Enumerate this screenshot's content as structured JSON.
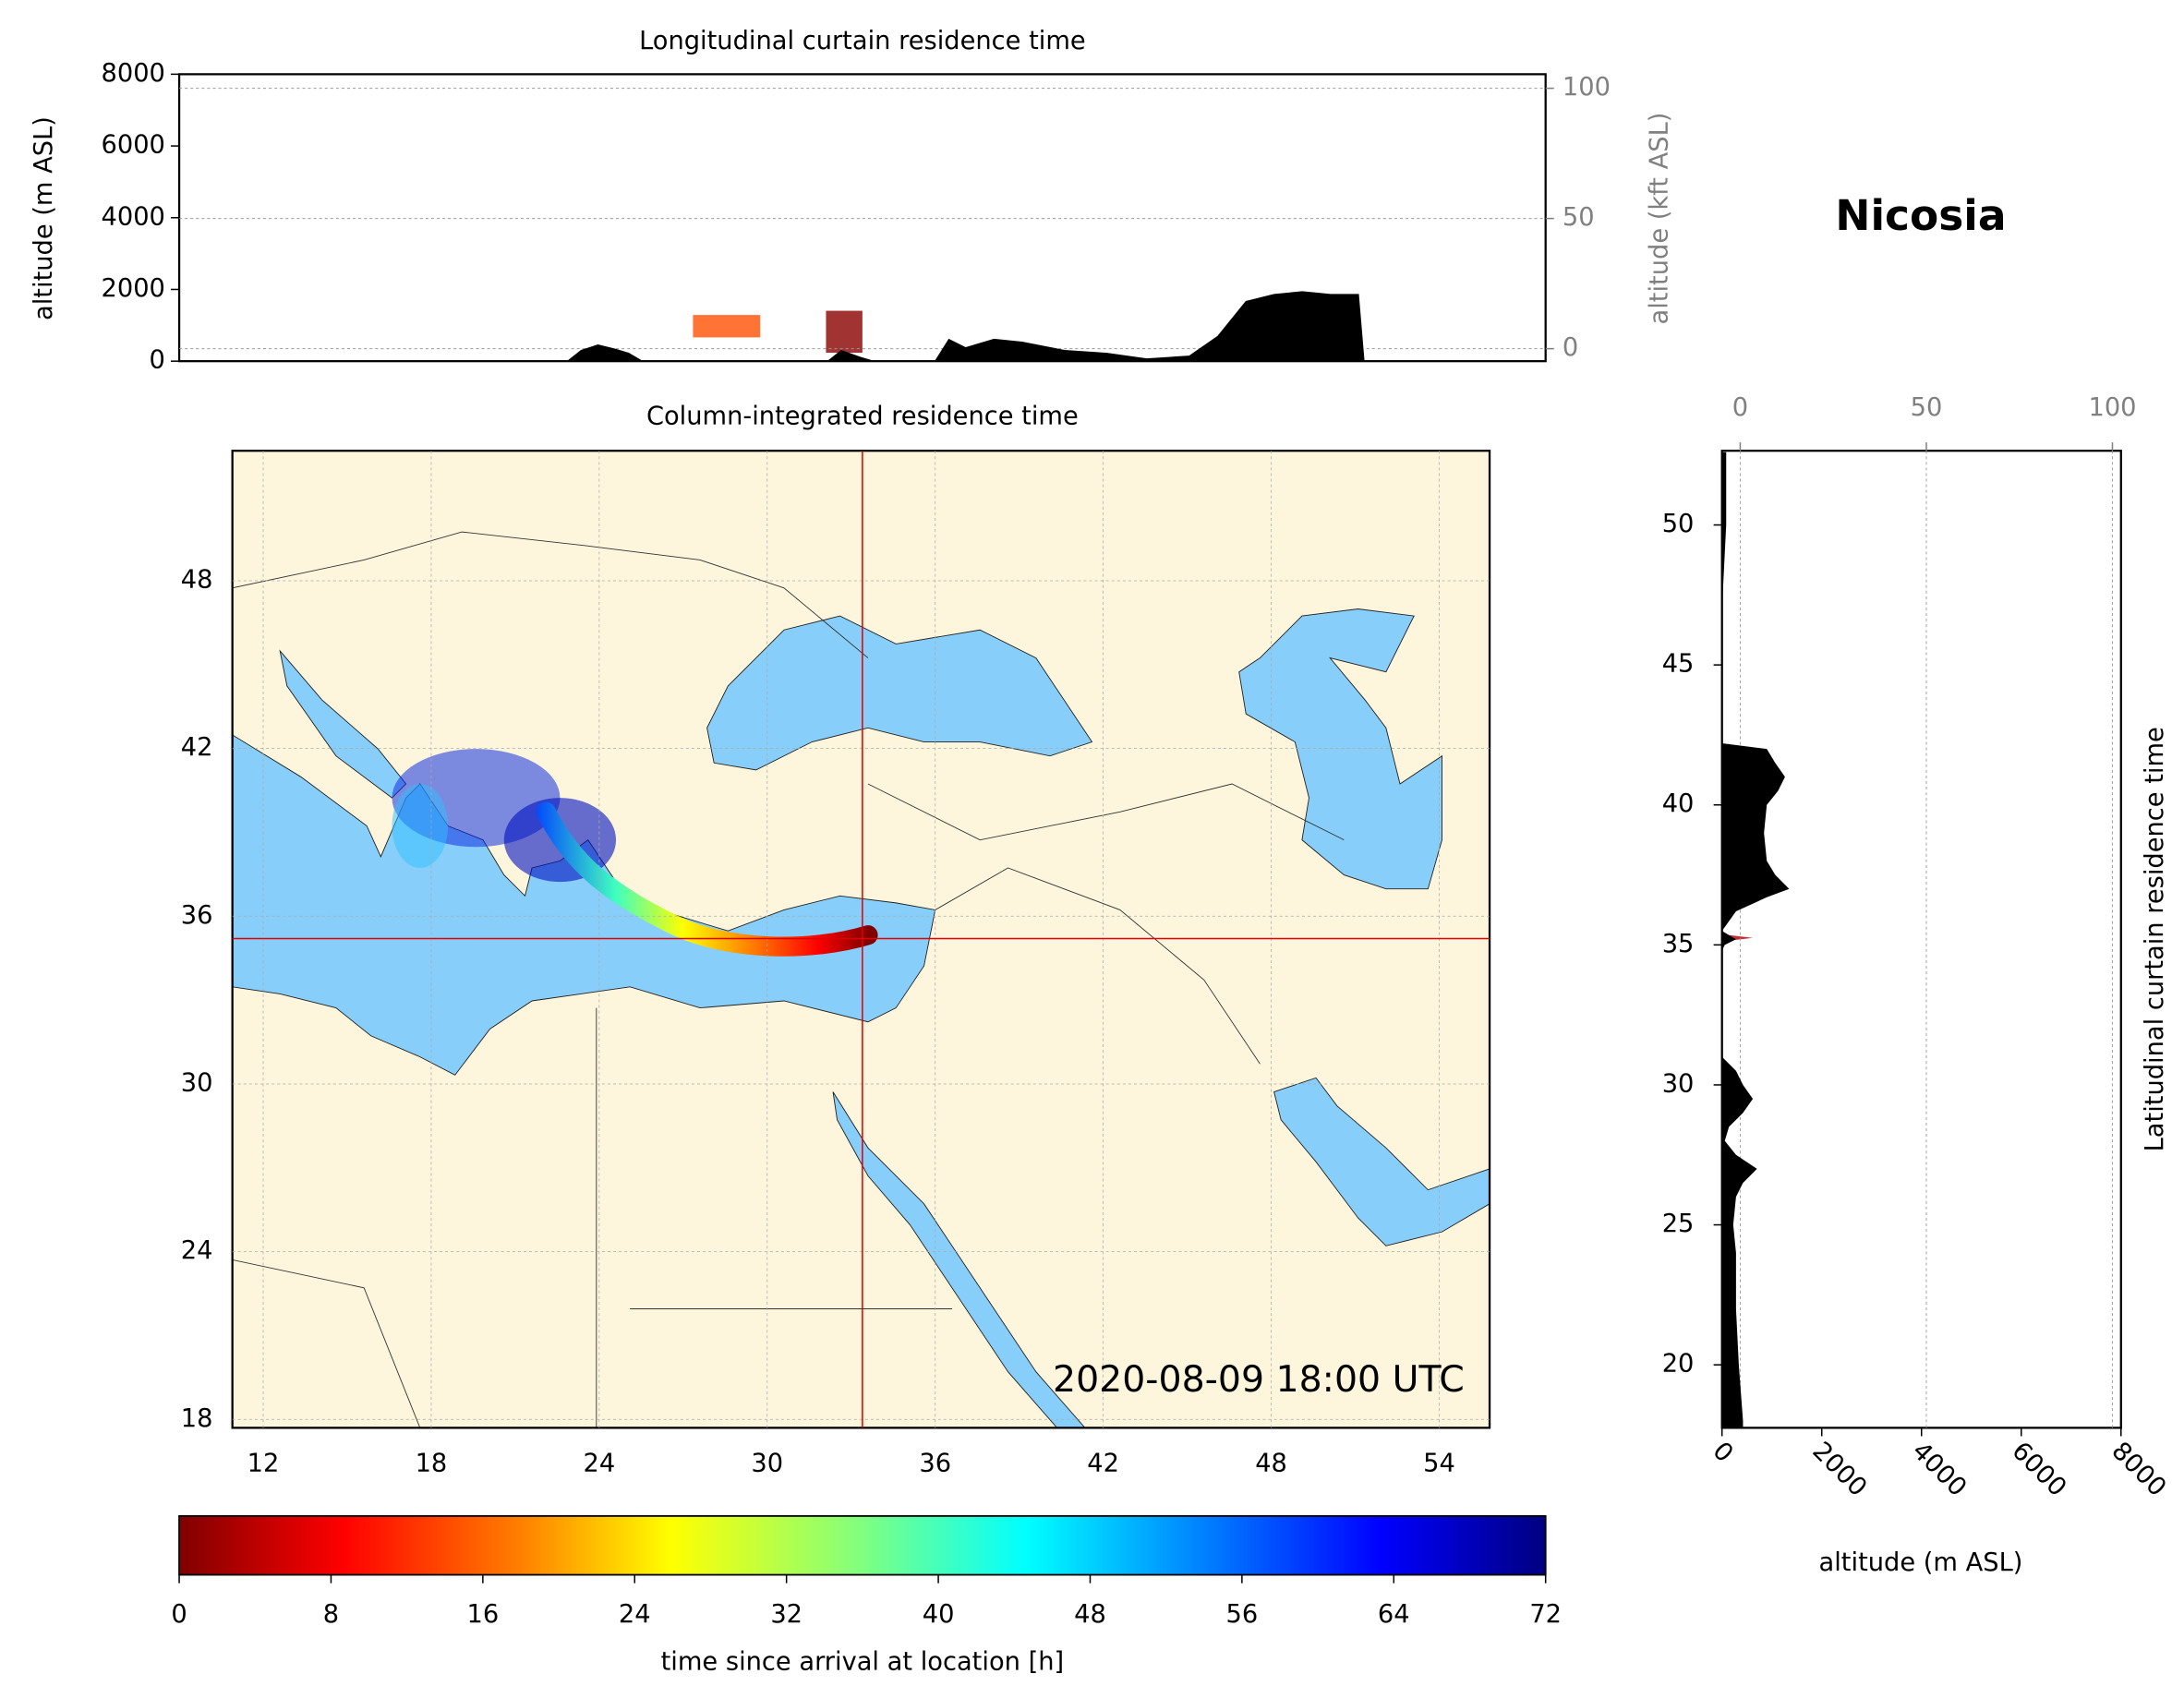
{
  "heading": "Nicosia",
  "chart_data": [
    {
      "type": "area",
      "title": "Longitudinal curtain residence time",
      "ylabel": "altitude (m ASL)",
      "y2label": "altitude (kft ASL)",
      "x": [
        22.8,
        23.3,
        23.9,
        24.5,
        25.0,
        25.5,
        32.0,
        32.5,
        33.2,
        33.7,
        35.8,
        36.3,
        36.9,
        37.9,
        38.9,
        40.4,
        41.9,
        43.3,
        44.8,
        45.8,
        46.8,
        47.8,
        48.8,
        49.8,
        50.8,
        51.0
      ],
      "values": [
        0,
        312,
        468,
        351,
        234,
        0,
        0,
        312,
        117,
        0,
        0,
        624,
        390,
        624,
        546,
        312,
        234,
        78,
        156,
        702,
        1678,
        1873,
        1951,
        1873,
        1873,
        0
      ],
      "color": "#000000",
      "xlim": [
        9.1,
        57.4
      ],
      "ylim": [
        0,
        8000
      ],
      "yticks": [
        0,
        2000,
        4000,
        6000,
        8000
      ],
      "y2lim": [
        -4.8,
        105.4
      ],
      "y2ticks": [
        0,
        50,
        100
      ],
      "grid": true
    },
    {
      "type": "map",
      "title": "Column-integrated residence time",
      "annotation": "2020-08-09 18:00 UTC",
      "xlim": [
        10.9,
        55.8
      ],
      "ylim": [
        17.7,
        52.65
      ],
      "xticks": [
        12,
        18,
        24,
        30,
        36,
        42,
        48,
        54
      ],
      "yticks": [
        18,
        24,
        30,
        36,
        42,
        48
      ],
      "marker": {
        "lon": 33.4,
        "lat": 35.2
      },
      "marker_color": "#e00000",
      "grid": true
    },
    {
      "type": "colorbar",
      "label": "time since arrival at location [h]",
      "xlim": [
        0,
        72
      ],
      "xticks": [
        0,
        8,
        16,
        24,
        32,
        40,
        48,
        56,
        64,
        72
      ]
    },
    {
      "type": "area-horizontal",
      "title": "Latitudinal curtain residence time",
      "xlabel": "altitude (m ASL)",
      "y": [
        52.6,
        50,
        47,
        46,
        42.2,
        42,
        41.5,
        41,
        40.5,
        40,
        39,
        38,
        37.5,
        37,
        36.7,
        36.2,
        35.5,
        35.2,
        35.0,
        34.8,
        31,
        30.5,
        30,
        29.5,
        29,
        28.5,
        28,
        27.5,
        27,
        26.5,
        26,
        25,
        24,
        22,
        20,
        18,
        17.75
      ],
      "values": [
        84,
        84,
        0,
        0,
        0,
        898,
        1067,
        1263,
        1123,
        898,
        842,
        898,
        1067,
        1347,
        898,
        281,
        0,
        281,
        56,
        0,
        0,
        281,
        421,
        618,
        421,
        140,
        56,
        281,
        702,
        421,
        281,
        225,
        281,
        281,
        337,
        421,
        421
      ],
      "color": "#000000",
      "xlim": [
        0,
        8000
      ],
      "xticks": [
        0,
        2000,
        4000,
        6000,
        8000
      ],
      "x2lim": [
        -4.9,
        102.3
      ],
      "x2ticks": [
        0,
        50,
        100
      ],
      "ylim": [
        17.75,
        52.65
      ],
      "yticks": [
        20,
        25,
        30,
        35,
        40,
        45,
        50
      ],
      "grid": true
    }
  ]
}
